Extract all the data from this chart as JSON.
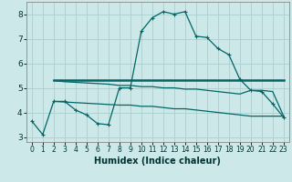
{
  "xlabel": "Humidex (Indice chaleur)",
  "background_color": "#cce8e8",
  "grid_color": "#aacfcf",
  "line_color": "#006666",
  "xlim_min": -0.5,
  "xlim_max": 23.5,
  "ylim_min": 2.8,
  "ylim_max": 8.5,
  "x_ticks": [
    0,
    1,
    2,
    3,
    4,
    5,
    6,
    7,
    8,
    9,
    10,
    11,
    12,
    13,
    14,
    15,
    16,
    17,
    18,
    19,
    20,
    21,
    22,
    23
  ],
  "y_ticks": [
    3,
    4,
    5,
    6,
    7,
    8
  ],
  "line1_x": [
    0,
    1,
    2,
    3,
    4,
    5,
    6,
    7,
    8,
    9,
    10,
    11,
    12,
    13,
    14,
    15,
    16,
    17,
    18,
    19,
    20,
    21,
    22,
    23
  ],
  "line1_y": [
    3.65,
    3.1,
    4.45,
    4.45,
    4.1,
    3.9,
    3.55,
    3.5,
    5.0,
    5.0,
    7.3,
    7.85,
    8.1,
    8.0,
    8.1,
    7.1,
    7.05,
    6.6,
    6.35,
    5.35,
    4.9,
    4.85,
    4.35,
    3.8
  ],
  "line2_x": [
    2,
    15,
    22,
    23
  ],
  "line2_y": [
    5.3,
    5.3,
    5.3,
    5.3
  ],
  "line3_x": [
    2,
    8,
    9,
    10,
    11,
    12,
    13,
    14,
    15,
    19,
    20,
    21,
    22,
    23
  ],
  "line3_y": [
    4.45,
    4.3,
    4.3,
    4.25,
    4.25,
    4.2,
    4.15,
    4.15,
    4.1,
    3.9,
    3.85,
    3.85,
    3.85,
    3.85
  ],
  "line4_x": [
    2,
    3,
    7,
    8,
    9,
    10,
    11,
    12,
    13,
    14,
    15,
    16,
    17,
    18,
    19,
    20,
    21,
    22,
    23
  ],
  "line4_y": [
    5.3,
    5.25,
    5.15,
    5.1,
    5.1,
    5.05,
    5.05,
    5.0,
    5.0,
    4.95,
    4.95,
    4.9,
    4.85,
    4.8,
    4.75,
    4.9,
    4.9,
    4.85,
    3.85
  ]
}
